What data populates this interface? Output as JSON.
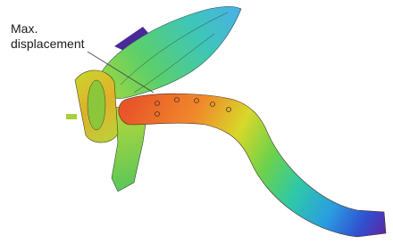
{
  "annotation": {
    "lines": [
      "Max.",
      "displacement"
    ]
  }
}
